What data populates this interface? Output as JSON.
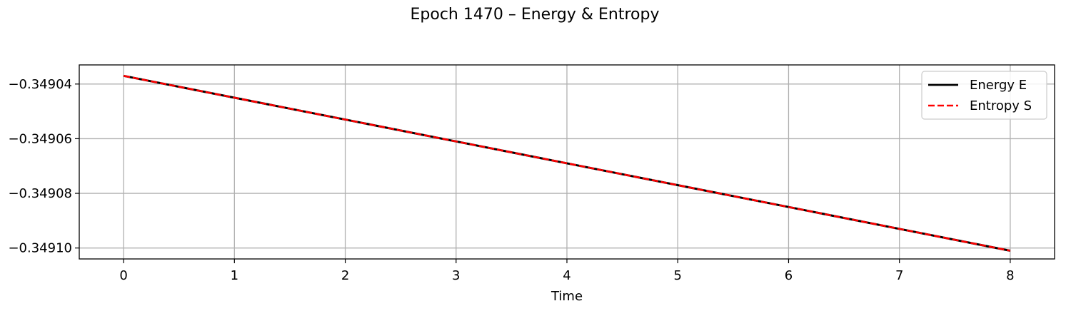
{
  "chart_data": {
    "type": "line",
    "title": "Epoch 1470 – Energy & Entropy",
    "xlabel": "Time",
    "ylabel": "",
    "xlim": [
      -0.4,
      8.4
    ],
    "ylim": [
      -0.349104,
      -0.349033
    ],
    "xticks": [
      0,
      1,
      2,
      3,
      4,
      5,
      6,
      7,
      8
    ],
    "xtick_labels": [
      "0",
      "1",
      "2",
      "3",
      "4",
      "5",
      "6",
      "7",
      "8"
    ],
    "yticks": [
      -0.34904,
      -0.34906,
      -0.34908,
      -0.3491
    ],
    "ytick_labels": [
      "−0.34904",
      "−0.34906",
      "−0.34908",
      "−0.34910"
    ],
    "grid": true,
    "legend_position": "top-right",
    "series": [
      {
        "name": "Energy E",
        "color": "#000000",
        "dash": "solid",
        "x": [
          0,
          8
        ],
        "y": [
          -0.349037,
          -0.349101
        ]
      },
      {
        "name": "Entropy S",
        "color": "#ff0000",
        "dash": "dashed",
        "x": [
          0,
          8
        ],
        "y": [
          -0.349037,
          -0.349101
        ]
      }
    ]
  }
}
